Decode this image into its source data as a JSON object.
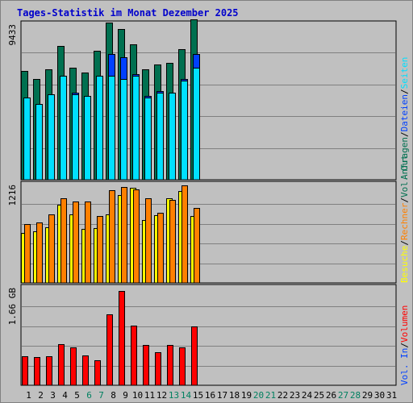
{
  "chart_data": {
    "type": "bar",
    "title": "Tages-Statistik im Monat Dezember 2025",
    "x": [
      "1",
      "2",
      "3",
      "4",
      "5",
      "6",
      "7",
      "8",
      "9",
      "10",
      "11",
      "12",
      "13",
      "14",
      "15",
      "16",
      "17",
      "18",
      "19",
      "20",
      "21",
      "22",
      "23",
      "24",
      "25",
      "26",
      "27",
      "28",
      "29",
      "30",
      "31"
    ],
    "weekend_days": [
      "6",
      "7",
      "13",
      "14",
      "20",
      "21",
      "27",
      "28"
    ],
    "colors": {
      "anfragen": "#007050",
      "dateien": "#0040ff",
      "seiten": "#00e0ff",
      "besuche": "#ffff00",
      "rechner": "#ff8000",
      "volumen": "#ff0000",
      "weekend_label": "#008060",
      "panel_bg": "#c0c0c0"
    },
    "panels": [
      {
        "name": "requests",
        "ymax_label": "9433",
        "ymax": 9433,
        "right_labels": [
          {
            "text": "Anfragen",
            "color": "#007050"
          },
          {
            "text": "/",
            "color": "#000000"
          },
          {
            "text": "Dateien",
            "color": "#0040ff"
          },
          {
            "text": "/",
            "color": "#000000"
          },
          {
            "text": "Seiten",
            "color": "#00e0ff"
          }
        ],
        "series": [
          {
            "name": "Anfragen",
            "values": [
              6500,
              6000,
              6600,
              8000,
              6700,
              6400,
              7700,
              9400,
              9000,
              8100,
              6600,
              6900,
              7000,
              7800,
              9600
            ]
          },
          {
            "name": "Dateien",
            "values": [
              4900,
              4500,
              5100,
              6200,
              5200,
              5000,
              6200,
              7500,
              7300,
              6300,
              5000,
              5300,
              5200,
              6000,
              7500
            ]
          },
          {
            "name": "Seiten",
            "values": [
              4900,
              4500,
              5100,
              6200,
              5100,
              5000,
              6200,
              6200,
              6000,
              6200,
              4900,
              5200,
              5200,
              5900,
              6700
            ]
          }
        ]
      },
      {
        "name": "visits",
        "ymax_label": "1216",
        "ymax": 1216,
        "right_labels": [
          {
            "text": "Besuche",
            "color": "#ffff00"
          },
          {
            "text": "/",
            "color": "#000000"
          },
          {
            "text": "Rechner",
            "color": "#ff8000"
          },
          {
            "text": "/",
            "color": "#000000"
          },
          {
            "text": "Vol. Out",
            "color": "#007050"
          }
        ],
        "series": [
          {
            "name": "Besuche",
            "values": [
              620,
              640,
              690,
              970,
              850,
              670,
              680,
              850,
              1100,
              1190,
              780,
              840,
              1060,
              1150,
              830
            ]
          },
          {
            "name": "Rechner",
            "values": [
              730,
              750,
              850,
              1060,
              1010,
              1020,
              830,
              1160,
              1200,
              1170,
              1060,
              870,
              1040,
              1220,
              930
            ]
          }
        ]
      },
      {
        "name": "volume",
        "ymax_label": "1.66 GB",
        "ymax": 1.66,
        "right_labels": [
          {
            "text": "Vol. In",
            "color": "#0040ff"
          },
          {
            "text": "/",
            "color": "#000000"
          },
          {
            "text": "Volumen",
            "color": "#ff0000"
          }
        ],
        "series": [
          {
            "name": "Volumen",
            "values": [
              0.5,
              0.48,
              0.49,
              0.7,
              0.64,
              0.51,
              0.43,
              1.21,
              1.6,
              1.02,
              0.68,
              0.56,
              0.69,
              0.64,
              1.0
            ]
          }
        ]
      }
    ]
  }
}
